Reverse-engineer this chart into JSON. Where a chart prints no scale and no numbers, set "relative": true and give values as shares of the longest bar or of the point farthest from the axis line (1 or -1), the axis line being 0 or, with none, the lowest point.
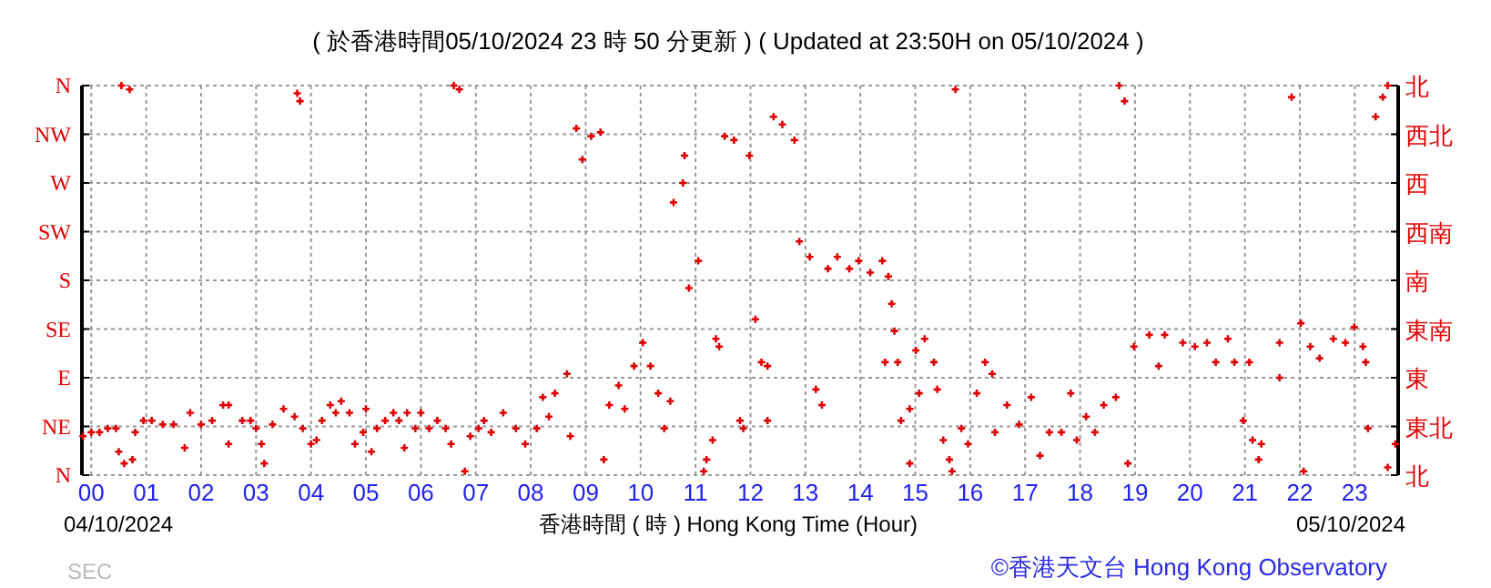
{
  "chart_data": {
    "type": "scatter",
    "title": "( 於香港時間05/10/2024 23 時 50 分更新 ) ( Updated at 23:50H on 05/10/2024 )",
    "xlabel": "香港時間 ( 時 )  Hong Kong Time (Hour)",
    "annotations": [
      "04/10/2024",
      "05/10/2024",
      "©香港天文台 Hong Kong Observatory",
      "SEC",
      "N",
      "NW",
      "W",
      "SW",
      "S",
      "SE",
      "E",
      "NE",
      "N",
      "北",
      "西北",
      "西",
      "西南",
      "南",
      "東南",
      "東",
      "東北",
      "北"
    ],
    "marker": "cross",
    "grid": true,
    "relative": true,
    "xlim": [
      -0.17,
      23.79
    ],
    "xticks": [
      {
        "value": 0,
        "label": "00"
      },
      {
        "value": 1,
        "label": "01"
      },
      {
        "value": 2,
        "label": "02"
      },
      {
        "value": 3,
        "label": "03"
      },
      {
        "value": 4,
        "label": "04"
      },
      {
        "value": 5,
        "label": "05"
      },
      {
        "value": 6,
        "label": "06"
      },
      {
        "value": 7,
        "label": "07"
      },
      {
        "value": 8,
        "label": "08"
      },
      {
        "value": 9,
        "label": "09"
      },
      {
        "value": 10,
        "label": "10"
      },
      {
        "value": 11,
        "label": "11"
      },
      {
        "value": 12,
        "label": "12"
      },
      {
        "value": 13,
        "label": "13"
      },
      {
        "value": 14,
        "label": "14"
      },
      {
        "value": 15,
        "label": "15"
      },
      {
        "value": 16,
        "label": "16"
      },
      {
        "value": 17,
        "label": "17"
      },
      {
        "value": 18,
        "label": "18"
      },
      {
        "value": 19,
        "label": "19"
      },
      {
        "value": 20,
        "label": "20"
      },
      {
        "value": 21,
        "label": "21"
      },
      {
        "value": 22,
        "label": "22"
      },
      {
        "value": 23,
        "label": "23"
      }
    ],
    "series": [
      {
        "color": "#e00000",
        "x": [
          -0.15,
          0.0,
          0.15,
          0.3,
          0.45,
          0.5,
          0.6,
          0.55,
          0.7,
          0.75,
          0.8,
          0.95,
          1.1,
          1.3,
          1.5,
          1.7,
          1.8,
          2.0,
          2.2,
          2.4,
          2.5,
          2.5,
          2.75,
          2.9,
          3.0,
          3.1,
          3.15,
          3.3,
          3.5,
          3.7,
          3.75,
          3.8,
          3.85,
          4.0,
          4.1,
          4.2,
          4.35,
          4.45,
          4.55,
          4.7,
          4.8,
          4.95,
          5.0,
          5.1,
          5.2,
          5.35,
          5.5,
          5.6,
          5.7,
          5.75,
          5.9,
          6.0,
          6.15,
          6.3,
          6.45,
          6.55,
          6.6,
          6.7,
          6.8,
          6.9,
          7.05,
          7.15,
          7.28,
          7.5,
          7.73,
          7.9,
          8.11,
          8.22,
          8.33,
          8.44,
          8.66,
          8.72,
          8.83,
          8.94,
          9.1,
          9.27,
          9.33,
          9.43,
          9.6,
          9.71,
          9.88,
          10.04,
          10.18,
          10.32,
          10.43,
          10.54,
          10.6,
          10.77,
          10.8,
          10.88,
          11.05,
          11.15,
          11.2,
          11.31,
          11.37,
          11.43,
          11.53,
          11.7,
          11.81,
          11.87,
          11.98,
          12.09,
          12.2,
          12.31,
          12.31,
          12.42,
          12.58,
          12.8,
          12.89,
          13.08,
          13.19,
          13.3,
          13.41,
          13.58,
          13.8,
          13.97,
          14.18,
          14.4,
          14.51,
          14.57,
          14.62,
          14.68,
          14.45,
          14.74,
          14.9,
          14.9,
          15.01,
          15.07,
          15.17,
          15.34,
          15.4,
          15.51,
          15.62,
          15.67,
          15.73,
          15.84,
          15.96,
          16.12,
          16.27,
          16.4,
          16.45,
          16.67,
          16.89,
          17.11,
          17.27,
          17.44,
          17.66,
          17.83,
          17.94,
          18.11,
          18.27,
          18.43,
          18.65,
          18.71,
          18.81,
          18.87,
          18.98,
          19.26,
          19.43,
          19.54,
          19.87,
          20.09,
          20.31,
          20.47,
          20.69,
          20.81,
          21.08,
          20.97,
          21.14,
          21.25,
          21.3,
          21.63,
          21.63,
          21.85,
          22.02,
          22.07,
          22.19,
          22.36,
          22.61,
          22.83,
          22.99,
          23.15,
          23.2,
          23.24,
          23.38,
          23.51,
          23.6,
          23.6,
          23.74
        ],
        "values": [
          0.1,
          0.11,
          0.11,
          0.12,
          0.12,
          0.06,
          0.03,
          1,
          0.99,
          0.04,
          0.11,
          0.14,
          0.14,
          0.13,
          0.13,
          0.07,
          0.16,
          0.13,
          0.14,
          0.18,
          0.18,
          0.08,
          0.14,
          0.14,
          0.12,
          0.08,
          0.03,
          0.13,
          0.17,
          0.15,
          0.98,
          0.96,
          0.12,
          0.08,
          0.09,
          0.14,
          0.18,
          0.16,
          0.19,
          0.16,
          0.08,
          0.11,
          0.17,
          0.06,
          0.12,
          0.14,
          0.16,
          0.14,
          0.07,
          0.16,
          0.12,
          0.16,
          0.12,
          0.14,
          0.12,
          0.08,
          1.0,
          0.99,
          0.01,
          0.1,
          0.12,
          0.14,
          0.11,
          0.16,
          0.12,
          0.08,
          0.12,
          0.2,
          0.15,
          0.21,
          0.26,
          0.1,
          0.89,
          0.81,
          0.87,
          0.88,
          0.04,
          0.18,
          0.23,
          0.17,
          0.28,
          0.34,
          0.28,
          0.21,
          0.12,
          0.19,
          0.7,
          0.75,
          0.82,
          0.48,
          0.55,
          0.01,
          0.04,
          0.09,
          0.35,
          0.33,
          0.87,
          0.86,
          0.14,
          0.12,
          0.82,
          0.4,
          0.29,
          0.28,
          0.14,
          0.92,
          0.9,
          0.86,
          0.6,
          0.56,
          0.22,
          0.18,
          0.53,
          0.56,
          0.53,
          0.55,
          0.52,
          0.55,
          0.51,
          0.44,
          0.37,
          0.29,
          0.29,
          0.14,
          0.03,
          0.17,
          0.32,
          0.21,
          0.35,
          0.29,
          0.22,
          0.09,
          0.04,
          0.01,
          0.99,
          0.12,
          0.08,
          0.21,
          0.29,
          0.26,
          0.11,
          0.18,
          0.13,
          0.2,
          0.05,
          0.11,
          0.11,
          0.21,
          0.09,
          0.15,
          0.11,
          0.18,
          0.2,
          1.0,
          0.96,
          0.03,
          0.33,
          0.36,
          0.28,
          0.36,
          0.34,
          0.33,
          0.34,
          0.29,
          0.35,
          0.29,
          0.29,
          0.14,
          0.09,
          0.04,
          0.08,
          0.34,
          0.25,
          0.97,
          0.39,
          0.01,
          0.33,
          0.3,
          0.35,
          0.34,
          0.38,
          0.33,
          0.29,
          0.12,
          0.92,
          0.97,
          1,
          0.02,
          0.08
        ]
      }
    ]
  }
}
